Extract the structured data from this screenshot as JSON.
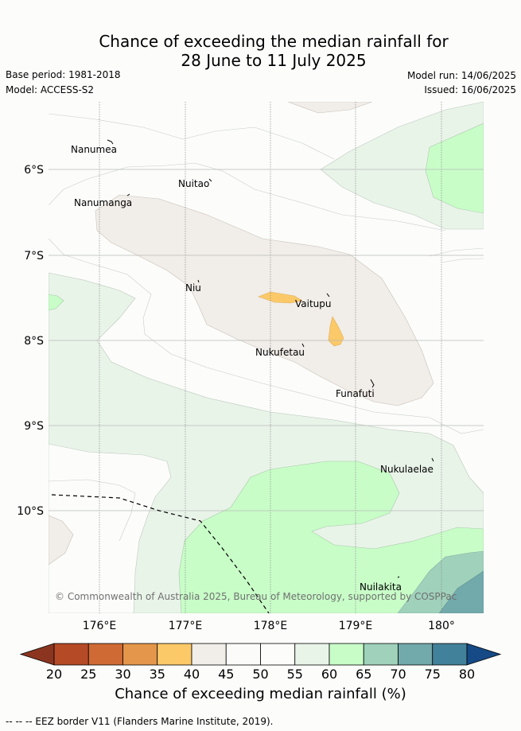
{
  "title": {
    "line1": "Chance of exceeding the median rainfall for",
    "line2": "28 June to 11 July 2025"
  },
  "meta": {
    "base_period": "Base period: 1981-2018",
    "model": "Model: ACCESS-S2",
    "model_run": "Model run: 14/06/2025",
    "issued": "Issued: 16/06/2025"
  },
  "map": {
    "longitude_ticks": [
      "176°E",
      "177°E",
      "178°E",
      "179°E",
      "180°"
    ],
    "latitude_ticks": [
      "6°S",
      "7°S",
      "8°S",
      "9°S",
      "10°S"
    ],
    "islands": [
      "Nanumea",
      "Nuitao",
      "Nanumanga",
      "Niu",
      "Vaitupu",
      "Nukufetau",
      "Funafuti",
      "Nukulaelae",
      "Nuilakita"
    ],
    "copyright": "© Commonwealth of Australia 2025, Bureau of Meteorology, supported by COSPPac"
  },
  "colorbar": {
    "ticks": [
      "20",
      "25",
      "30",
      "35",
      "40",
      "45",
      "50",
      "55",
      "60",
      "65",
      "70",
      "75",
      "80"
    ],
    "colors": [
      "#8b3520",
      "#b54a27",
      "#cf6a35",
      "#e4964a",
      "#fbc968",
      "#f1ede8",
      "#fbfcfa",
      "#fcfdfb",
      "#e9f4e9",
      "#c8fdc8",
      "#9fd1bb",
      "#72a9ab",
      "#42819a",
      "#154a86"
    ],
    "title": "Chance of exceeding median rainfall (%)"
  },
  "footer": {
    "eez_note": "--  --  -- EEZ border V11 (Flanders Marine Institute, 2019)."
  }
}
